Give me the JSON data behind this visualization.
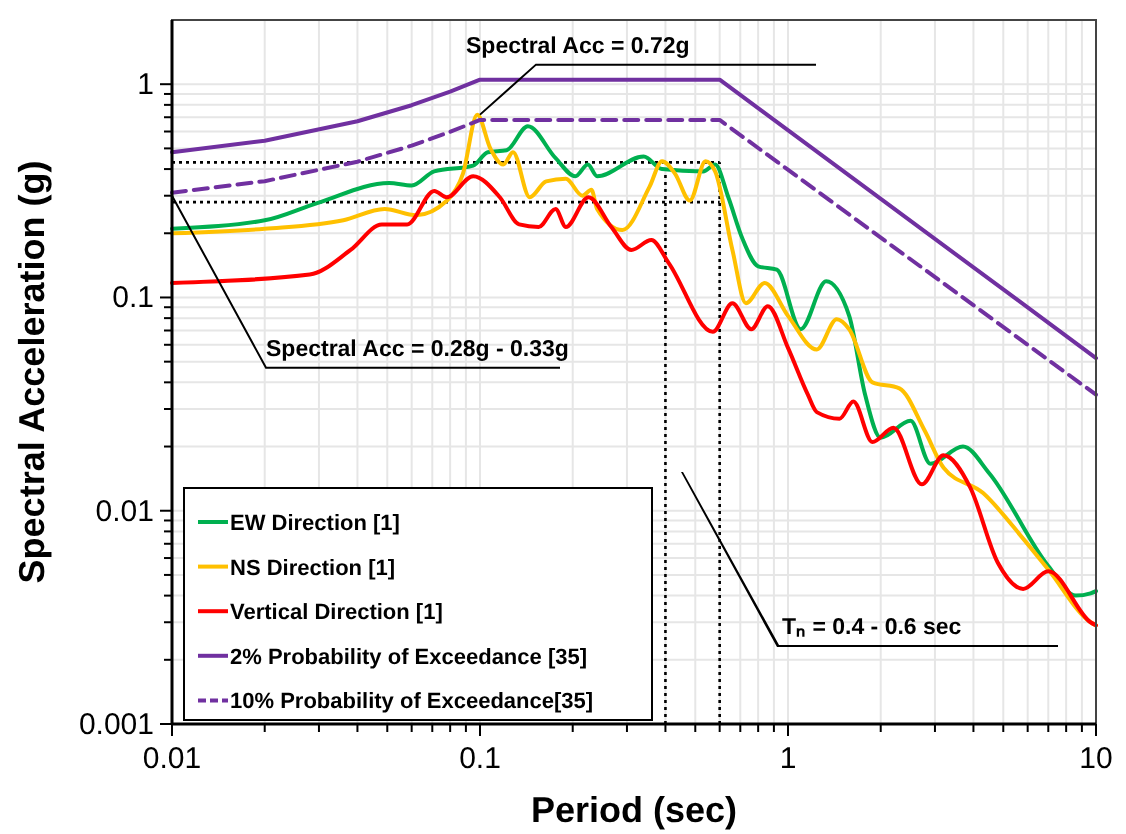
{
  "chart_data": {
    "type": "line",
    "xlabel": "Period (sec)",
    "ylabel": "Spectral Acceleration (g)",
    "log": "xy",
    "xlim": [
      0.01,
      10
    ],
    "ylim": [
      0.001,
      2
    ],
    "xticks": [
      0.01,
      0.1,
      1,
      10
    ],
    "yticks": [
      0.001,
      0.01,
      0.1,
      1
    ],
    "grid": true,
    "legend": "bottom left",
    "series": [
      {
        "name": "EW Direction [1]",
        "color": "#00b050",
        "x": [
          0.01,
          0.02,
          0.0296,
          0.0507,
          0.06,
          0.071,
          0.095,
          0.106,
          0.122,
          0.143,
          0.176,
          0.204,
          0.224,
          0.24,
          0.34,
          0.39,
          0.53,
          0.58,
          0.64,
          0.71,
          0.8,
          0.92,
          1.1,
          1.33,
          1.58,
          1.78,
          2.0,
          2.5,
          2.9,
          3.7,
          4.5,
          7.0,
          8.6,
          9.6,
          10
        ],
        "values": [
          0.21,
          0.23,
          0.277,
          0.344,
          0.335,
          0.39,
          0.415,
          0.48,
          0.49,
          0.635,
          0.45,
          0.37,
          0.42,
          0.37,
          0.458,
          0.4,
          0.39,
          0.42,
          0.295,
          0.19,
          0.14,
          0.135,
          0.071,
          0.119,
          0.082,
          0.035,
          0.022,
          0.0264,
          0.0166,
          0.02,
          0.015,
          0.0055,
          0.004,
          0.0041,
          0.0042
        ]
      },
      {
        "name": "NS Direction [1]",
        "color": "#ffc000",
        "x": [
          0.01,
          0.02,
          0.036,
          0.049,
          0.062,
          0.078,
          0.088,
          0.098,
          0.108,
          0.119,
          0.128,
          0.145,
          0.164,
          0.19,
          0.215,
          0.23,
          0.24,
          0.29,
          0.355,
          0.39,
          0.43,
          0.48,
          0.54,
          0.58,
          0.66,
          0.73,
          0.84,
          1.0,
          1.24,
          1.44,
          1.58,
          1.88,
          2.3,
          2.78,
          3.2,
          4.3,
          5.8,
          7.0,
          9.6,
          10
        ],
        "values": [
          0.2,
          0.21,
          0.23,
          0.26,
          0.243,
          0.284,
          0.38,
          0.72,
          0.5,
          0.42,
          0.48,
          0.295,
          0.35,
          0.36,
          0.3,
          0.32,
          0.26,
          0.207,
          0.33,
          0.435,
          0.38,
          0.285,
          0.435,
          0.39,
          0.167,
          0.094,
          0.117,
          0.082,
          0.057,
          0.079,
          0.071,
          0.04,
          0.0375,
          0.0237,
          0.0159,
          0.0121,
          0.0074,
          0.0053,
          0.003,
          0.0029
        ]
      },
      {
        "name": "Vertical Direction [1]",
        "color": "#ff0000",
        "x": [
          0.01,
          0.028,
          0.038,
          0.048,
          0.058,
          0.071,
          0.078,
          0.095,
          0.116,
          0.134,
          0.155,
          0.176,
          0.19,
          0.225,
          0.267,
          0.31,
          0.36,
          0.41,
          0.57,
          0.66,
          0.76,
          0.86,
          1.0,
          1.16,
          1.24,
          1.47,
          1.63,
          1.88,
          2.2,
          2.72,
          3.2,
          3.9,
          4.8,
          5.8,
          7.0,
          9.6,
          10
        ],
        "values": [
          0.117,
          0.128,
          0.167,
          0.22,
          0.22,
          0.316,
          0.295,
          0.37,
          0.295,
          0.22,
          0.214,
          0.26,
          0.214,
          0.295,
          0.214,
          0.167,
          0.186,
          0.145,
          0.069,
          0.094,
          0.071,
          0.091,
          0.058,
          0.035,
          0.029,
          0.027,
          0.0325,
          0.021,
          0.0245,
          0.0133,
          0.0182,
          0.0129,
          0.0057,
          0.0043,
          0.0052,
          0.003,
          0.0029
        ]
      },
      {
        "name": "2% Probability of Exceedance [35]",
        "color": "#7030a0",
        "x": [
          0.01,
          0.02,
          0.04,
          0.06,
          0.08,
          0.1,
          0.6,
          10
        ],
        "values": [
          0.48,
          0.543,
          0.67,
          0.797,
          0.923,
          1.05,
          1.05,
          0.052
        ]
      },
      {
        "name": "10% Probability of Exceedance[35]",
        "color": "#7030a0",
        "line_style": "dashed",
        "x": [
          0.01,
          0.02,
          0.04,
          0.06,
          0.08,
          0.1,
          0.6,
          10
        ],
        "values": [
          0.31,
          0.351,
          0.433,
          0.515,
          0.598,
          0.68,
          0.68,
          0.035
        ]
      }
    ],
    "ref_lines": [
      {
        "axis": "y",
        "value": 0.43,
        "line_style": "dotted",
        "color": "#000000"
      },
      {
        "axis": "y",
        "value": 0.28,
        "line_style": "dotted",
        "color": "#000000"
      },
      {
        "axis": "x",
        "value": 0.4,
        "line_style": "dotted",
        "color": "#000000"
      },
      {
        "axis": "x",
        "value": 0.6,
        "line_style": "dotted",
        "color": "#000000"
      }
    ],
    "annotations": [
      {
        "text": "Spectral Acc = 0.72g",
        "x": 0.1,
        "y": 0.72
      },
      {
        "text": "Spectral Acc = 0.28g - 0.33g",
        "x": 0.01,
        "y": 0.3
      },
      "Tₙ = 0.4 - 0.6 sec"
    ]
  }
}
